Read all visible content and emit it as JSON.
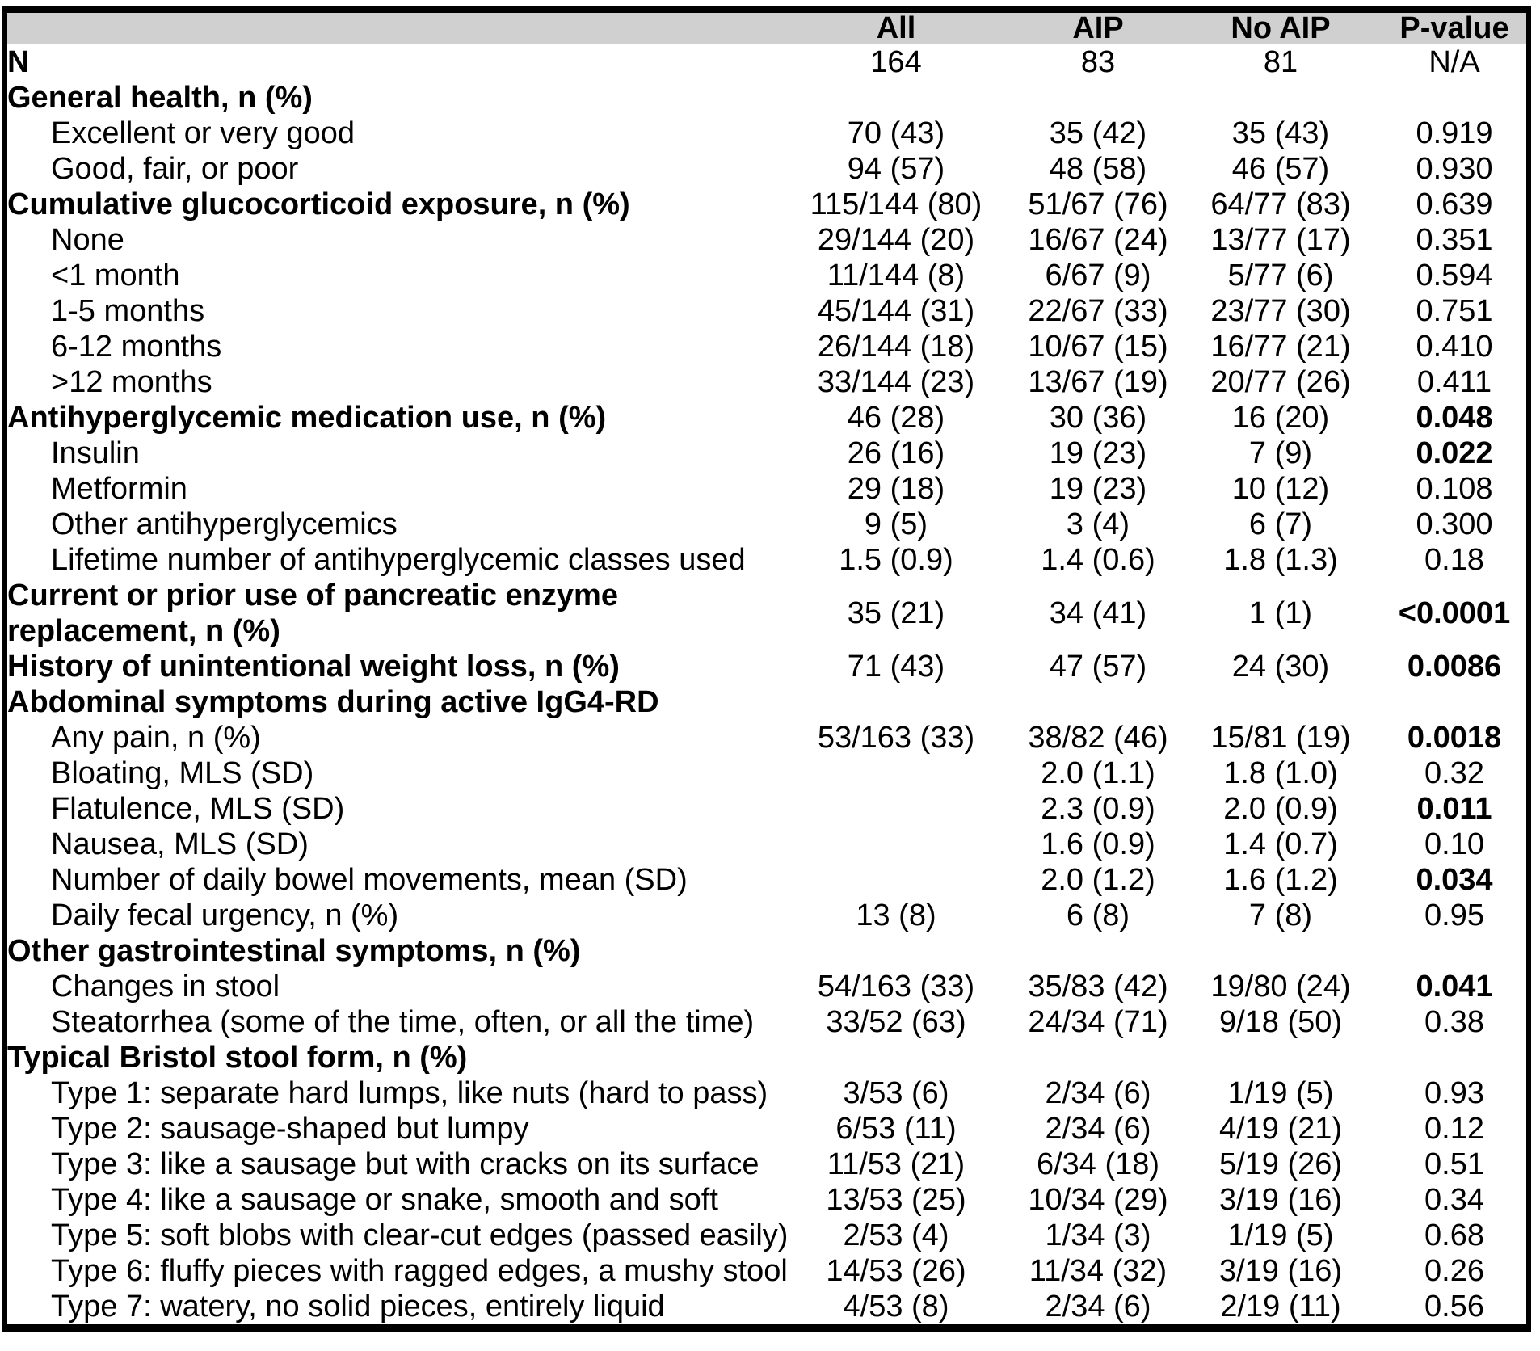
{
  "colors": {
    "header_bg": "#d0d0d0",
    "border": "#000000",
    "text": "#000000"
  },
  "table": {
    "header": {
      "label": "",
      "columns": [
        "All",
        "AIP",
        "No AIP",
        "P-value"
      ]
    },
    "rows": [
      {
        "label": "N",
        "bold": true,
        "indent": false,
        "values": [
          "164",
          "83",
          "81",
          "N/A"
        ],
        "p_bold": false
      },
      {
        "label": "General health, n (%)",
        "bold": true,
        "indent": false,
        "values": [
          "",
          "",
          "",
          ""
        ],
        "p_bold": false
      },
      {
        "label": "Excellent or very good",
        "bold": false,
        "indent": true,
        "values": [
          "70 (43)",
          "35 (42)",
          "35 (43)",
          "0.919"
        ],
        "p_bold": false
      },
      {
        "label": "Good, fair, or poor",
        "bold": false,
        "indent": true,
        "values": [
          "94 (57)",
          "48 (58)",
          "46 (57)",
          "0.930"
        ],
        "p_bold": false
      },
      {
        "label": "Cumulative glucocorticoid exposure, n (%)",
        "bold": true,
        "indent": false,
        "values": [
          "115/144 (80)",
          "51/67 (76)",
          "64/77 (83)",
          "0.639"
        ],
        "p_bold": false
      },
      {
        "label": "None",
        "bold": false,
        "indent": true,
        "values": [
          "29/144 (20)",
          "16/67 (24)",
          "13/77 (17)",
          "0.351"
        ],
        "p_bold": false
      },
      {
        "label": "<1 month",
        "bold": false,
        "indent": true,
        "values": [
          "11/144 (8)",
          "6/67 (9)",
          "5/77 (6)",
          "0.594"
        ],
        "p_bold": false
      },
      {
        "label": "1-5 months",
        "bold": false,
        "indent": true,
        "values": [
          "45/144 (31)",
          "22/67 (33)",
          "23/77 (30)",
          "0.751"
        ],
        "p_bold": false
      },
      {
        "label": "6-12 months",
        "bold": false,
        "indent": true,
        "values": [
          "26/144 (18)",
          "10/67 (15)",
          "16/77 (21)",
          "0.410"
        ],
        "p_bold": false
      },
      {
        "label": ">12 months",
        "bold": false,
        "indent": true,
        "values": [
          "33/144 (23)",
          "13/67 (19)",
          "20/77 (26)",
          "0.411"
        ],
        "p_bold": false
      },
      {
        "label": "Antihyperglycemic medication use, n (%)",
        "bold": true,
        "indent": false,
        "values": [
          "46 (28)",
          "30 (36)",
          "16 (20)",
          "0.048"
        ],
        "p_bold": true
      },
      {
        "label": "Insulin",
        "bold": false,
        "indent": true,
        "values": [
          "26 (16)",
          "19 (23)",
          "7 (9)",
          "0.022"
        ],
        "p_bold": true
      },
      {
        "label": "Metformin",
        "bold": false,
        "indent": true,
        "values": [
          "29 (18)",
          "19 (23)",
          "10 (12)",
          "0.108"
        ],
        "p_bold": false
      },
      {
        "label": "Other antihyperglycemics",
        "bold": false,
        "indent": true,
        "values": [
          "9 (5)",
          "3 (4)",
          "6 (7)",
          "0.300"
        ],
        "p_bold": false
      },
      {
        "label": "Lifetime number of antihyperglycemic classes used",
        "bold": false,
        "indent": true,
        "values": [
          "1.5 (0.9)",
          "1.4 (0.6)",
          "1.8 (1.3)",
          "0.18"
        ],
        "p_bold": false
      },
      {
        "label": "Current or prior use of pancreatic enzyme\nreplacement, n (%)",
        "bold": true,
        "indent": false,
        "values": [
          "35 (21)",
          "34 (41)",
          "1 (1)",
          "<0.0001"
        ],
        "p_bold": true
      },
      {
        "label": "History of unintentional weight loss, n (%)",
        "bold": true,
        "indent": false,
        "values": [
          "71 (43)",
          "47 (57)",
          "24 (30)",
          "0.0086"
        ],
        "p_bold": true
      },
      {
        "label": "Abdominal symptoms during active IgG4-RD",
        "bold": true,
        "indent": false,
        "values": [
          "",
          "",
          "",
          ""
        ],
        "p_bold": false
      },
      {
        "label": "Any pain, n (%)",
        "bold": false,
        "indent": true,
        "values": [
          "53/163 (33)",
          "38/82 (46)",
          "15/81 (19)",
          "0.0018"
        ],
        "p_bold": true
      },
      {
        "label": "Bloating, MLS (SD)",
        "bold": false,
        "indent": true,
        "values": [
          "",
          "2.0 (1.1)",
          "1.8 (1.0)",
          "0.32"
        ],
        "p_bold": false
      },
      {
        "label": "Flatulence, MLS (SD)",
        "bold": false,
        "indent": true,
        "values": [
          "",
          "2.3 (0.9)",
          "2.0 (0.9)",
          "0.011"
        ],
        "p_bold": true
      },
      {
        "label": "Nausea, MLS (SD)",
        "bold": false,
        "indent": true,
        "values": [
          "",
          "1.6 (0.9)",
          "1.4 (0.7)",
          "0.10"
        ],
        "p_bold": false
      },
      {
        "label": "Number of daily bowel movements, mean (SD)",
        "bold": false,
        "indent": true,
        "values": [
          "",
          "2.0 (1.2)",
          "1.6 (1.2)",
          "0.034"
        ],
        "p_bold": true
      },
      {
        "label": "Daily fecal urgency, n (%)",
        "bold": false,
        "indent": true,
        "values": [
          "13 (8)",
          "6 (8)",
          "7 (8)",
          "0.95"
        ],
        "p_bold": false
      },
      {
        "label": "Other gastrointestinal symptoms, n (%)",
        "bold": true,
        "indent": false,
        "values": [
          "",
          "",
          "",
          ""
        ],
        "p_bold": false
      },
      {
        "label": "Changes in stool",
        "bold": false,
        "indent": true,
        "values": [
          "54/163 (33)",
          "35/83 (42)",
          "19/80 (24)",
          "0.041"
        ],
        "p_bold": true
      },
      {
        "label": "Steatorrhea (some of the time, often, or all the time)",
        "bold": false,
        "indent": true,
        "values": [
          "33/52 (63)",
          "24/34 (71)",
          "9/18 (50)",
          "0.38"
        ],
        "p_bold": false
      },
      {
        "label": "Typical Bristol stool form, n (%)",
        "bold": true,
        "indent": false,
        "values": [
          "",
          "",
          "",
          ""
        ],
        "p_bold": false
      },
      {
        "label": "Type 1: separate hard lumps, like nuts (hard to pass)",
        "bold": false,
        "indent": true,
        "values": [
          "3/53 (6)",
          "2/34 (6)",
          "1/19 (5)",
          "0.93"
        ],
        "p_bold": false
      },
      {
        "label": "Type 2: sausage-shaped but lumpy",
        "bold": false,
        "indent": true,
        "values": [
          "6/53 (11)",
          "2/34 (6)",
          "4/19 (21)",
          "0.12"
        ],
        "p_bold": false
      },
      {
        "label": "Type 3: like a sausage but with cracks on its surface",
        "bold": false,
        "indent": true,
        "values": [
          "11/53 (21)",
          "6/34 (18)",
          "5/19 (26)",
          "0.51"
        ],
        "p_bold": false
      },
      {
        "label": "Type 4: like a sausage or snake, smooth and soft",
        "bold": false,
        "indent": true,
        "values": [
          "13/53 (25)",
          "10/34 (29)",
          "3/19 (16)",
          "0.34"
        ],
        "p_bold": false
      },
      {
        "label": "Type 5: soft blobs with clear-cut edges (passed easily)",
        "bold": false,
        "indent": true,
        "values": [
          "2/53 (4)",
          "1/34 (3)",
          "1/19 (5)",
          "0.68"
        ],
        "p_bold": false
      },
      {
        "label": "Type 6: fluffy pieces with ragged edges, a mushy stool",
        "bold": false,
        "indent": true,
        "values": [
          "14/53 (26)",
          "11/34 (32)",
          "3/19 (16)",
          "0.26"
        ],
        "p_bold": false
      },
      {
        "label": "Type 7: watery, no solid pieces, entirely liquid",
        "bold": false,
        "indent": true,
        "values": [
          "4/53 (8)",
          "2/34 (6)",
          "2/19 (11)",
          "0.56"
        ],
        "p_bold": false
      }
    ]
  }
}
